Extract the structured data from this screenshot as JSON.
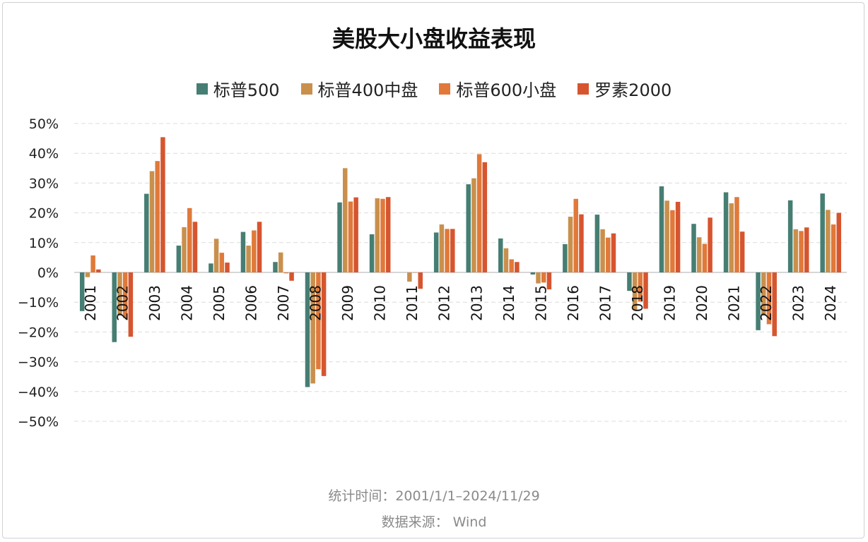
{
  "chart_data": {
    "type": "bar",
    "title": "美股大小盘收益表现",
    "categories": [
      "2001",
      "2002",
      "2003",
      "2004",
      "2005",
      "2006",
      "2007",
      "2008",
      "2009",
      "2010",
      "2011",
      "2012",
      "2013",
      "2014",
      "2015",
      "2016",
      "2017",
      "2018",
      "2019",
      "2020",
      "2021",
      "2022",
      "2023",
      "2024"
    ],
    "series": [
      {
        "name": "标普500",
        "color": "#467e73",
        "values": [
          -13.0,
          -23.4,
          26.4,
          9.0,
          3.0,
          13.6,
          3.5,
          -38.5,
          23.5,
          12.8,
          0.0,
          13.4,
          29.6,
          11.4,
          -0.7,
          9.5,
          19.4,
          -6.2,
          28.9,
          16.3,
          26.9,
          -19.4,
          24.2,
          26.5
        ]
      },
      {
        "name": "标普400中盘",
        "color": "#c9904d",
        "values": [
          -1.6,
          -14.5,
          34.0,
          15.2,
          11.3,
          9.0,
          6.7,
          -37.3,
          35.0,
          24.9,
          -3.1,
          16.1,
          31.6,
          8.1,
          -3.7,
          18.7,
          14.5,
          -12.5,
          24.1,
          11.8,
          23.2,
          -14.5,
          14.5,
          21.0
        ]
      },
      {
        "name": "标普600小盘",
        "color": "#e0793a",
        "values": [
          5.7,
          -15.3,
          37.4,
          21.6,
          6.6,
          14.1,
          -0.3,
          -32.5,
          23.8,
          24.7,
          -0.1,
          14.6,
          39.7,
          4.4,
          -3.4,
          24.7,
          11.7,
          -9.8,
          20.9,
          9.6,
          25.3,
          -17.4,
          13.9,
          16.1
        ]
      },
      {
        "name": "罗素2000",
        "color": "#d6552f",
        "values": [
          1.0,
          -21.6,
          45.4,
          17.0,
          3.3,
          17.0,
          -2.8,
          -34.8,
          25.2,
          25.3,
          -5.5,
          14.6,
          37.0,
          3.5,
          -5.7,
          19.5,
          13.1,
          -12.2,
          23.7,
          18.4,
          13.7,
          -21.4,
          15.1,
          20.0
        ]
      }
    ],
    "yticks": [
      "50%",
      "40%",
      "30%",
      "20%",
      "10%",
      "0%",
      "−10%",
      "−20%",
      "−30%",
      "−40%",
      "−50%"
    ],
    "ylim": [
      -50,
      50
    ],
    "grid": true,
    "legend": "top-center"
  },
  "footer": {
    "period": "统计时间：2001/1/1–2024/11/29",
    "source": "数据来源：  Wind"
  }
}
